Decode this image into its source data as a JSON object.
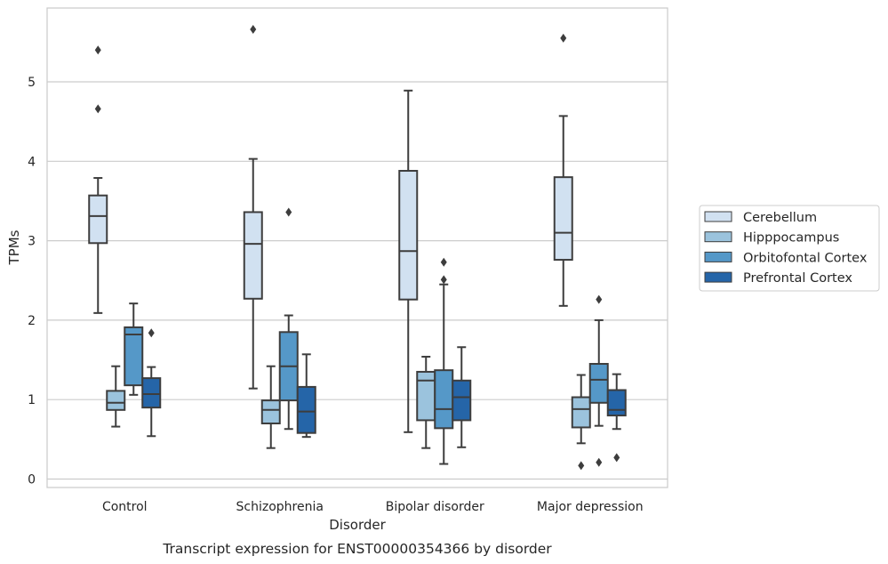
{
  "chart_data": {
    "type": "box",
    "caption": "Transcript expression for ENST00000354366 by disorder",
    "xlabel": "Disorder",
    "ylabel": "TPMs",
    "ylim": [
      -0.1,
      5.9
    ],
    "yticks": [
      0,
      1,
      2,
      3,
      4,
      5
    ],
    "grid": "horizontal",
    "legend_position": "right",
    "categories": [
      "Control",
      "Schizophrenia",
      "Bipolar disorder",
      "Major depression"
    ],
    "series": [
      {
        "name": "Cerebellum",
        "color": "#d1e1f1",
        "boxes": [
          {
            "whisker_low": 2.09,
            "q1": 2.97,
            "median": 3.31,
            "q3": 3.57,
            "whisker_high": 3.79,
            "outliers": [
              4.66,
              5.4
            ]
          },
          {
            "whisker_low": 1.14,
            "q1": 2.27,
            "median": 2.96,
            "q3": 3.36,
            "whisker_high": 4.03,
            "outliers": [
              5.66
            ]
          },
          {
            "whisker_low": 0.59,
            "q1": 2.26,
            "median": 2.87,
            "q3": 3.88,
            "whisker_high": 4.89,
            "outliers": []
          },
          {
            "whisker_low": 2.18,
            "q1": 2.76,
            "median": 3.1,
            "q3": 3.8,
            "whisker_high": 4.57,
            "outliers": [
              5.55
            ]
          }
        ]
      },
      {
        "name": "Hipppocampus",
        "color": "#9bc3dd",
        "boxes": [
          {
            "whisker_low": 0.66,
            "q1": 0.87,
            "median": 0.96,
            "q3": 1.11,
            "whisker_high": 1.42,
            "outliers": []
          },
          {
            "whisker_low": 0.39,
            "q1": 0.7,
            "median": 0.87,
            "q3": 0.99,
            "whisker_high": 1.42,
            "outliers": []
          },
          {
            "whisker_low": 0.39,
            "q1": 0.74,
            "median": 1.24,
            "q3": 1.35,
            "whisker_high": 1.54,
            "outliers": []
          },
          {
            "whisker_low": 0.45,
            "q1": 0.65,
            "median": 0.88,
            "q3": 1.03,
            "whisker_high": 1.31,
            "outliers": [
              0.17
            ]
          }
        ]
      },
      {
        "name": "Orbitofontal Cortex",
        "color": "#5598c8",
        "boxes": [
          {
            "whisker_low": 1.06,
            "q1": 1.18,
            "median": 1.82,
            "q3": 1.91,
            "whisker_high": 2.21,
            "outliers": []
          },
          {
            "whisker_low": 0.63,
            "q1": 0.99,
            "median": 1.42,
            "q3": 1.85,
            "whisker_high": 2.06,
            "outliers": [
              3.36
            ]
          },
          {
            "whisker_low": 0.19,
            "q1": 0.64,
            "median": 0.88,
            "q3": 1.37,
            "whisker_high": 2.45,
            "outliers": [
              2.51,
              2.73
            ]
          },
          {
            "whisker_low": 0.67,
            "q1": 0.96,
            "median": 1.25,
            "q3": 1.45,
            "whisker_high": 2.0,
            "outliers": [
              0.21,
              2.26
            ]
          }
        ]
      },
      {
        "name": "Prefrontal Cortex",
        "color": "#2565a8",
        "boxes": [
          {
            "whisker_low": 0.54,
            "q1": 0.9,
            "median": 1.07,
            "q3": 1.27,
            "whisker_high": 1.41,
            "outliers": [
              1.84
            ]
          },
          {
            "whisker_low": 0.53,
            "q1": 0.58,
            "median": 0.85,
            "q3": 1.16,
            "whisker_high": 1.57,
            "outliers": []
          },
          {
            "whisker_low": 0.4,
            "q1": 0.74,
            "median": 1.03,
            "q3": 1.24,
            "whisker_high": 1.66,
            "outliers": []
          },
          {
            "whisker_low": 0.63,
            "q1": 0.8,
            "median": 0.87,
            "q3": 1.12,
            "whisker_high": 1.32,
            "outliers": [
              0.27
            ]
          }
        ]
      }
    ]
  }
}
